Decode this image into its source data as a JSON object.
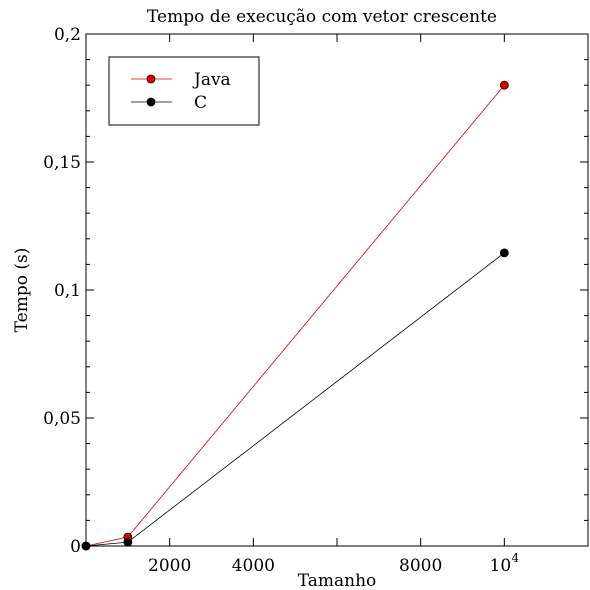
{
  "chart_data": {
    "type": "line",
    "title": "Tempo de execução com vetor crescente",
    "xlabel": "Tamanho",
    "ylabel": "Tempo (s)",
    "xlim": [
      0,
      12000
    ],
    "ylim": [
      0,
      0.2
    ],
    "x_ticks": [
      {
        "value": 2000,
        "label": "2000"
      },
      {
        "value": 4000,
        "label": "4000"
      },
      {
        "value": 8000,
        "label": "8000"
      },
      {
        "value": 10000,
        "label": "10",
        "exponent": "4"
      }
    ],
    "y_ticks": [
      {
        "value": 0,
        "label": "0"
      },
      {
        "value": 0.05,
        "label": "0,05"
      },
      {
        "value": 0.1,
        "label": "0,1"
      },
      {
        "value": 0.15,
        "label": "0,15"
      },
      {
        "value": 0.2,
        "label": "0,2"
      }
    ],
    "x_minor_ticks": [
      2000,
      4000,
      6000,
      8000,
      10000,
      12000
    ],
    "y_minor_ticks": [
      0.01,
      0.02,
      0.03,
      0.04,
      0.06,
      0.07,
      0.08,
      0.09,
      0.11,
      0.12,
      0.13,
      0.14,
      0.16,
      0.17,
      0.18,
      0.19
    ],
    "grid": false,
    "legend_position": "top-left",
    "series": [
      {
        "name": "Java",
        "color": "#e00000",
        "x": [
          0,
          1000,
          10000
        ],
        "y": [
          0.0,
          0.0035,
          0.18
        ]
      },
      {
        "name": "C",
        "color": "#000000",
        "x": [
          0,
          1000,
          10000
        ],
        "y": [
          0.0,
          0.0015,
          0.1145
        ]
      }
    ]
  }
}
